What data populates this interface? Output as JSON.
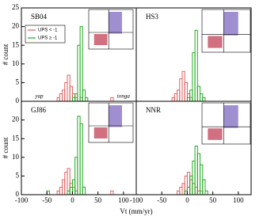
{
  "chart_data": [
    {
      "type": "histogram",
      "title": "SB04",
      "ylabel": "# count",
      "bins": [
        -50,
        -45,
        -40,
        -35,
        -30,
        -25,
        -20,
        -15,
        -10,
        -5,
        0,
        5,
        10,
        15,
        20,
        25,
        30,
        35,
        40,
        45,
        50,
        55,
        60,
        65,
        70,
        75,
        80
      ],
      "series": [
        {
          "name": "UPS < -1",
          "color": "#e06060",
          "values": [
            0,
            0,
            0,
            0,
            1,
            2,
            3,
            5,
            7,
            4,
            2,
            1,
            0,
            1,
            0,
            0,
            0,
            0,
            0,
            0,
            0,
            0,
            0,
            0,
            0,
            1
          ]
        },
        {
          "name": "UPS ≥ -1",
          "color": "#22aa22",
          "values": [
            0,
            0,
            0,
            0,
            0,
            0,
            0,
            0,
            0,
            0,
            1,
            2,
            15,
            20,
            3,
            1,
            0,
            0,
            0,
            0,
            0,
            0,
            0,
            0,
            0,
            0
          ]
        }
      ],
      "annotations": [
        {
          "text": "yap",
          "x": -65
        },
        {
          "text": "tonga",
          "x": 100
        }
      ],
      "xlim": [
        -100,
        125
      ],
      "ylim": [
        0,
        25
      ],
      "yticks": [
        0,
        5,
        10,
        15,
        20,
        25
      ]
    },
    {
      "type": "histogram",
      "title": "HS3",
      "bins": [
        -50,
        -45,
        -40,
        -35,
        -30,
        -25,
        -20,
        -15,
        -10,
        -5,
        0,
        5,
        10,
        15,
        20,
        25,
        30,
        35,
        40,
        45,
        50,
        55,
        60,
        65,
        70,
        75,
        80
      ],
      "series": [
        {
          "color": "#e06060",
          "values": [
            0,
            0,
            0,
            0,
            1,
            2,
            3,
            6,
            8,
            5,
            2,
            1,
            0,
            0,
            0,
            0,
            0,
            0,
            0,
            0,
            0,
            0,
            0,
            0,
            0,
            0
          ]
        },
        {
          "color": "#22aa22",
          "values": [
            0,
            0,
            0,
            0,
            0,
            0,
            0,
            0,
            0,
            0,
            1,
            3,
            13,
            19,
            4,
            2,
            1,
            0,
            0,
            0,
            0,
            0,
            0,
            0,
            0,
            0
          ]
        }
      ],
      "xlim": [
        -100,
        125
      ],
      "ylim": [
        0,
        25
      ]
    },
    {
      "type": "histogram",
      "title": "GJ86",
      "ylabel": "# count",
      "xlabel": "Vt (mm/yr)",
      "bins": [
        -50,
        -45,
        -40,
        -35,
        -30,
        -25,
        -20,
        -15,
        -10,
        -5,
        0,
        5,
        10,
        15,
        20,
        25,
        30,
        35,
        40,
        45,
        50,
        55,
        60,
        65,
        70,
        75,
        80
      ],
      "series": [
        {
          "color": "#e06060",
          "values": [
            0,
            0,
            0,
            0,
            1,
            2,
            4,
            6,
            7,
            3,
            2,
            1,
            0,
            0,
            0,
            0,
            0,
            0,
            0,
            0,
            0,
            0,
            0,
            0,
            0,
            1
          ]
        },
        {
          "color": "#22aa22",
          "values": [
            1,
            0,
            0,
            0,
            0,
            0,
            0,
            0,
            1,
            2,
            4,
            10,
            21,
            19,
            2,
            0,
            0,
            0,
            0,
            0,
            0,
            0,
            0,
            0,
            0,
            0
          ]
        }
      ],
      "xlim": [
        -100,
        125
      ],
      "ylim": [
        0,
        25
      ],
      "xticks": [
        -100,
        -50,
        0,
        50,
        100
      ],
      "yticks": [
        0,
        5,
        10,
        15,
        20
      ]
    },
    {
      "type": "histogram",
      "title": "NNR",
      "bins": [
        -50,
        -45,
        -40,
        -35,
        -30,
        -25,
        -20,
        -15,
        -10,
        -5,
        0,
        5,
        10,
        15,
        20,
        25,
        30,
        35,
        40,
        45,
        50,
        55,
        60,
        65,
        70,
        75,
        80
      ],
      "series": [
        {
          "color": "#e06060",
          "values": [
            0,
            0,
            0,
            0,
            0,
            0,
            1,
            2,
            3,
            5,
            6,
            4,
            3,
            2,
            1,
            1,
            0,
            0,
            0,
            0,
            0,
            0,
            0,
            0,
            0,
            0
          ]
        },
        {
          "color": "#22aa22",
          "values": [
            0,
            0,
            0,
            0,
            0,
            0,
            0,
            0,
            0,
            1,
            2,
            5,
            9,
            13,
            11,
            8,
            4,
            1,
            0,
            0,
            0,
            0,
            0,
            0,
            0,
            0
          ]
        }
      ],
      "xlim": [
        -100,
        125
      ],
      "ylim": [
        0,
        25
      ],
      "xticks": [
        -100,
        -50,
        0,
        50,
        100
      ]
    }
  ]
}
